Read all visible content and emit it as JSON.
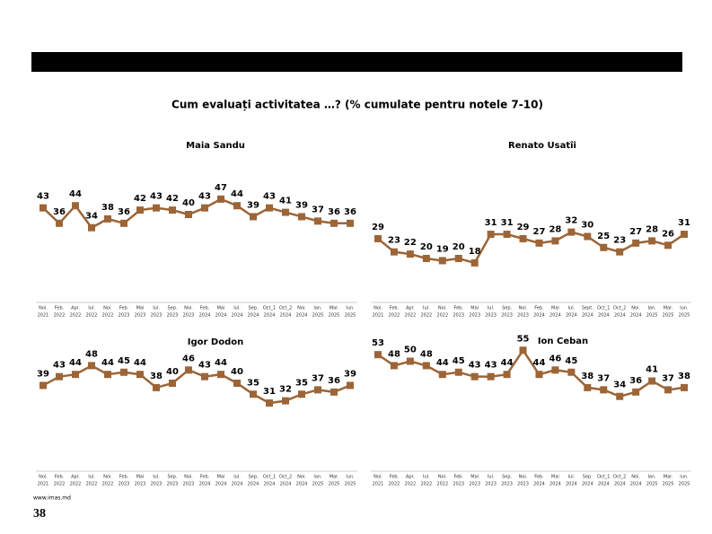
{
  "title": "Cum evaluați activitatea …? (% cumulate pentru notele 7-10)",
  "footer": "www.imas.md",
  "page_number": "38",
  "chart_data": [
    {
      "type": "line",
      "title": "Maia Sandu",
      "color": "#9c6538",
      "categories": [
        [
          "Noi.",
          "2021"
        ],
        [
          "Feb.",
          "2022"
        ],
        [
          "Apr.",
          "2022"
        ],
        [
          "Iul.",
          "2022"
        ],
        [
          "Noi.",
          "2022"
        ],
        [
          "Feb.",
          "2023"
        ],
        [
          "Mai",
          "2023"
        ],
        [
          "Iul.",
          "2023"
        ],
        [
          "Sep.",
          "2023"
        ],
        [
          "Noi.",
          "2023"
        ],
        [
          "Feb.",
          "2024"
        ],
        [
          "Mai",
          "2024"
        ],
        [
          "Iul.",
          "2024"
        ],
        [
          "Sep.",
          "2024"
        ],
        [
          "Oct_1",
          "2024"
        ],
        [
          "Oct_2",
          "2024"
        ],
        [
          "Noi.",
          "2024"
        ],
        [
          "Ian.",
          "2025"
        ],
        [
          "Mar.",
          "2025"
        ],
        [
          "Iun.",
          "2025"
        ]
      ],
      "values": [
        43,
        36,
        44,
        34,
        38,
        36,
        42,
        43,
        42,
        40,
        43,
        47,
        44,
        39,
        43,
        41,
        39,
        37,
        36,
        36
      ]
    },
    {
      "type": "line",
      "title": "Renato Usatîi",
      "color": "#9c6538",
      "categories": [
        [
          "Noi.",
          "2021"
        ],
        [
          "Feb.",
          "2022"
        ],
        [
          "Apr.",
          "2022"
        ],
        [
          "Iul.",
          "2022"
        ],
        [
          "Noi.",
          "2022"
        ],
        [
          "Feb.",
          "2023"
        ],
        [
          "Mai",
          "2023"
        ],
        [
          "Iul.",
          "2023"
        ],
        [
          "Sep.",
          "2023"
        ],
        [
          "Noi.",
          "2023"
        ],
        [
          "Feb.",
          "2024"
        ],
        [
          "Mai",
          "2024"
        ],
        [
          "Iul.",
          "2024"
        ],
        [
          "Sept.",
          "2024"
        ],
        [
          "Oct_1",
          "2024"
        ],
        [
          "Oct_2",
          "2024"
        ],
        [
          "Noi.",
          "2024"
        ],
        [
          "Ian.",
          "2025"
        ],
        [
          "Mar.",
          "2025"
        ],
        [
          "Iun.",
          "2025"
        ]
      ],
      "values": [
        29,
        23,
        22,
        20,
        19,
        20,
        18,
        31,
        31,
        29,
        27,
        28,
        32,
        30,
        25,
        23,
        27,
        28,
        26,
        31
      ]
    },
    {
      "type": "line",
      "title": "Igor Dodon",
      "color": "#9c6538",
      "categories": [
        [
          "Noi.",
          "2021"
        ],
        [
          "Feb.",
          "2022"
        ],
        [
          "Apr.",
          "2022"
        ],
        [
          "Iul.",
          "2022"
        ],
        [
          "Noi.",
          "2022"
        ],
        [
          "Feb.",
          "2023"
        ],
        [
          "Mai",
          "2023"
        ],
        [
          "Iul.",
          "2023"
        ],
        [
          "Sep.",
          "2023"
        ],
        [
          "Noi.",
          "2023"
        ],
        [
          "Feb.",
          "2024"
        ],
        [
          "Mai",
          "2024"
        ],
        [
          "Iul.",
          "2024"
        ],
        [
          "Sep.",
          "2024"
        ],
        [
          "Oct_1",
          "2024"
        ],
        [
          "Oct_2",
          "2024"
        ],
        [
          "Noi.",
          "2024"
        ],
        [
          "Ian.",
          "2025"
        ],
        [
          "Mar.",
          "2025"
        ],
        [
          "Iun.",
          "2025"
        ]
      ],
      "values": [
        39,
        43,
        44,
        48,
        44,
        45,
        44,
        38,
        40,
        46,
        43,
        44,
        40,
        35,
        31,
        32,
        35,
        37,
        36,
        39
      ]
    },
    {
      "type": "line",
      "title": "Ion Ceban",
      "color": "#9c6538",
      "categories": [
        [
          "Noi.",
          "2021"
        ],
        [
          "Feb.",
          "2022"
        ],
        [
          "Apr.",
          "2022"
        ],
        [
          "Iul.",
          "2022"
        ],
        [
          "Noi.",
          "2022"
        ],
        [
          "Feb.",
          "2023"
        ],
        [
          "Mai",
          "2023"
        ],
        [
          "Iul.",
          "2023"
        ],
        [
          "Sep.",
          "2023"
        ],
        [
          "Noi.",
          "2023"
        ],
        [
          "Feb.",
          "2024"
        ],
        [
          "Mai",
          "2024"
        ],
        [
          "Iul.",
          "2024"
        ],
        [
          "Sep.",
          "2024"
        ],
        [
          "Oct_1",
          "2024"
        ],
        [
          "Oct_2",
          "2024"
        ],
        [
          "Noi.",
          "2024"
        ],
        [
          "Ian.",
          "2025"
        ],
        [
          "Mar.",
          "2025"
        ],
        [
          "Iun.",
          "2025"
        ]
      ],
      "values": [
        53,
        48,
        50,
        48,
        44,
        45,
        43,
        43,
        44,
        55,
        44,
        46,
        45,
        38,
        37,
        34,
        36,
        41,
        37,
        38
      ]
    }
  ]
}
